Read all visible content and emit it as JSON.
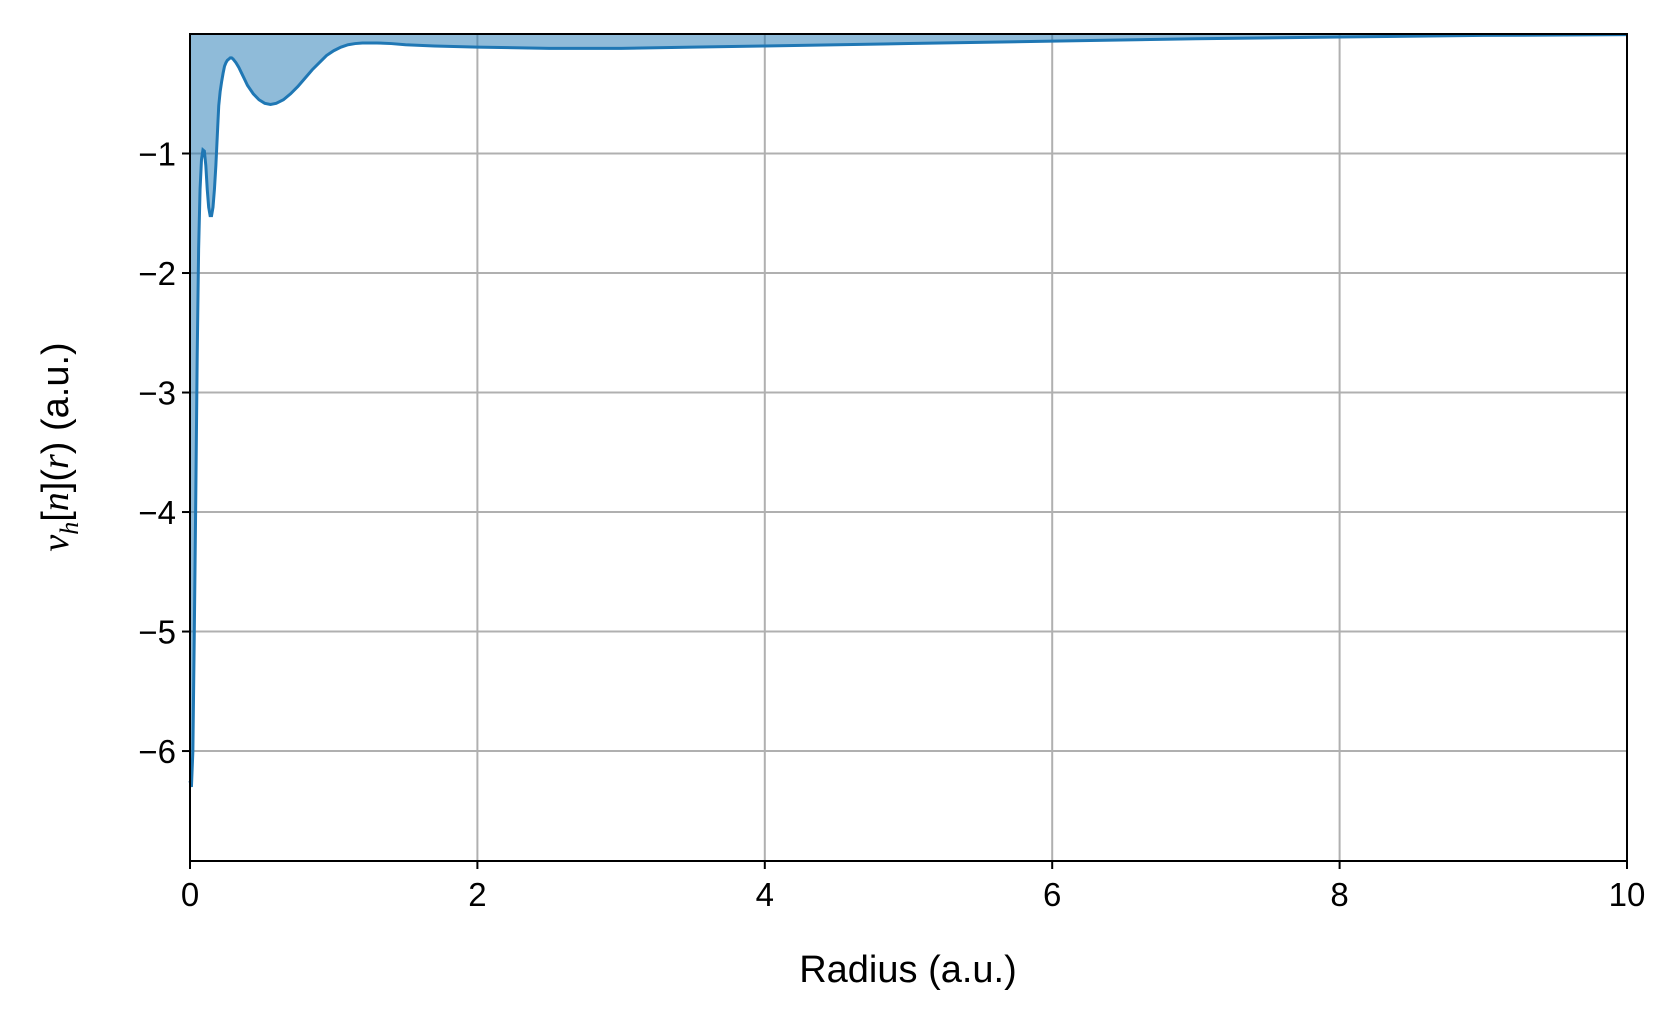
{
  "chart_data": {
    "type": "area",
    "title": "",
    "xlabel": "Radius (a.u.)",
    "ylabel": {
      "v": "v",
      "sub": "h",
      "rest_a": "[",
      "n": "n",
      "rest_b": "](",
      "r": "r",
      "rest_c": ")",
      "units": " (a.u.)"
    },
    "xlim": [
      0,
      10
    ],
    "ylim": [
      -6.92,
      0.0
    ],
    "xticks": [
      0,
      2,
      4,
      6,
      8,
      10
    ],
    "xtick_labels": [
      "0",
      "2",
      "4",
      "6",
      "8",
      "10"
    ],
    "yticks": [
      -1,
      -2,
      -3,
      -4,
      -5,
      -6
    ],
    "ytick_labels": [
      "−1",
      "−2",
      "−3",
      "−4",
      "−5",
      "−6"
    ],
    "grid": true,
    "line_color": "#1f77b4",
    "fill_color": "#1f77b4",
    "fill_opacity": 0.5,
    "series": [
      {
        "x": [
          0.0,
          0.01,
          0.02,
          0.03,
          0.04,
          0.05,
          0.06,
          0.07,
          0.08,
          0.09,
          0.1,
          0.11,
          0.12,
          0.13,
          0.14,
          0.15,
          0.16,
          0.17,
          0.18,
          0.19,
          0.2,
          0.21,
          0.22,
          0.23,
          0.24,
          0.25,
          0.26,
          0.27,
          0.28,
          0.29,
          0.3,
          0.32,
          0.34,
          0.36,
          0.38,
          0.4,
          0.44,
          0.48,
          0.52,
          0.56,
          0.6,
          0.65,
          0.7,
          0.75,
          0.8,
          0.85,
          0.9,
          0.95,
          1.0,
          1.05,
          1.1,
          1.15,
          1.2,
          1.3,
          1.4,
          1.5,
          1.7,
          2.0,
          2.5,
          3.0,
          3.5,
          4.0,
          5.0,
          6.0,
          7.0,
          8.0,
          9.0,
          10.0
        ],
        "y": [
          -6.25,
          -6.3,
          -6.0,
          -5.0,
          -3.9,
          -2.7,
          -1.8,
          -1.3,
          -1.05,
          -0.97,
          -0.98,
          -1.1,
          -1.3,
          -1.45,
          -1.52,
          -1.52,
          -1.45,
          -1.3,
          -1.1,
          -0.85,
          -0.6,
          -0.48,
          -0.4,
          -0.33,
          -0.27,
          -0.24,
          -0.22,
          -0.21,
          -0.2,
          -0.2,
          -0.21,
          -0.24,
          -0.28,
          -0.33,
          -0.38,
          -0.43,
          -0.5,
          -0.55,
          -0.58,
          -0.59,
          -0.58,
          -0.55,
          -0.5,
          -0.44,
          -0.37,
          -0.3,
          -0.24,
          -0.18,
          -0.14,
          -0.11,
          -0.09,
          -0.08,
          -0.075,
          -0.075,
          -0.08,
          -0.09,
          -0.1,
          -0.11,
          -0.12,
          -0.12,
          -0.11,
          -0.1,
          -0.08,
          -0.06,
          -0.04,
          -0.025,
          -0.012,
          -0.005
        ]
      }
    ]
  }
}
